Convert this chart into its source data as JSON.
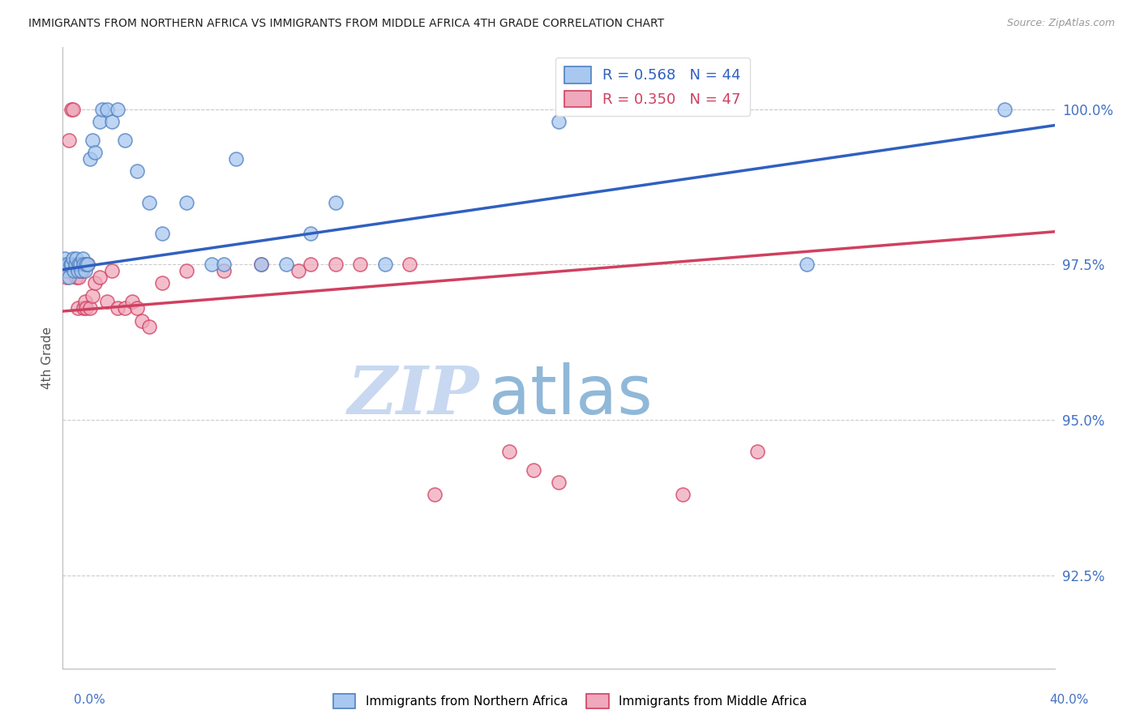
{
  "title": "IMMIGRANTS FROM NORTHERN AFRICA VS IMMIGRANTS FROM MIDDLE AFRICA 4TH GRADE CORRELATION CHART",
  "source": "Source: ZipAtlas.com",
  "ylabel": "4th Grade",
  "xmin": 0.0,
  "xmax": 40.0,
  "ymin": 91.0,
  "ymax": 101.0,
  "blue_R": 0.568,
  "blue_N": 44,
  "pink_R": 0.35,
  "pink_N": 47,
  "blue_label": "Immigrants from Northern Africa",
  "pink_label": "Immigrants from Middle Africa",
  "blue_color": "#A8C8F0",
  "pink_color": "#F0A8BC",
  "blue_edge_color": "#5080C0",
  "pink_edge_color": "#D04060",
  "blue_line_color": "#3060C0",
  "pink_line_color": "#D04060",
  "title_color": "#222222",
  "source_color": "#999999",
  "axis_label_color": "#4472C4",
  "watermark_zip_color": "#C8D8F0",
  "watermark_atlas_color": "#90B8D8",
  "background_color": "#FFFFFF",
  "ytick_vals": [
    92.5,
    95.0,
    97.5,
    100.0
  ],
  "blue_x": [
    0.05,
    0.1,
    0.15,
    0.2,
    0.25,
    0.3,
    0.35,
    0.4,
    0.45,
    0.5,
    0.55,
    0.6,
    0.65,
    0.7,
    0.75,
    0.8,
    0.85,
    0.9,
    0.95,
    1.0,
    1.1,
    1.2,
    1.3,
    1.5,
    1.6,
    1.8,
    2.0,
    2.2,
    2.5,
    3.0,
    3.5,
    4.0,
    5.0,
    6.0,
    6.5,
    7.0,
    8.0,
    9.0,
    10.0,
    11.0,
    13.0,
    20.0,
    30.0,
    38.0
  ],
  "blue_y": [
    97.5,
    97.6,
    97.4,
    97.5,
    97.3,
    97.5,
    97.5,
    97.6,
    97.4,
    97.5,
    97.6,
    97.4,
    97.5,
    97.5,
    97.4,
    97.6,
    97.5,
    97.4,
    97.5,
    97.5,
    99.2,
    99.5,
    99.3,
    99.8,
    100.0,
    100.0,
    99.8,
    100.0,
    99.5,
    99.0,
    98.5,
    98.0,
    98.5,
    97.5,
    97.5,
    99.2,
    97.5,
    97.5,
    98.0,
    98.5,
    97.5,
    99.8,
    97.5,
    100.0
  ],
  "pink_x": [
    0.05,
    0.1,
    0.15,
    0.2,
    0.25,
    0.3,
    0.35,
    0.4,
    0.45,
    0.5,
    0.55,
    0.6,
    0.65,
    0.7,
    0.75,
    0.8,
    0.85,
    0.9,
    0.95,
    1.0,
    1.1,
    1.2,
    1.3,
    1.5,
    1.8,
    2.0,
    2.2,
    2.5,
    2.8,
    3.0,
    3.2,
    3.5,
    4.0,
    5.0,
    6.5,
    8.0,
    9.5,
    10.0,
    11.0,
    12.0,
    14.0,
    15.0,
    18.0,
    19.0,
    20.0,
    25.0,
    28.0
  ],
  "pink_y": [
    97.5,
    97.4,
    97.3,
    97.5,
    99.5,
    97.5,
    100.0,
    100.0,
    97.4,
    97.5,
    97.3,
    96.8,
    97.3,
    97.4,
    97.5,
    97.4,
    96.8,
    96.9,
    96.8,
    97.5,
    96.8,
    97.0,
    97.2,
    97.3,
    96.9,
    97.4,
    96.8,
    96.8,
    96.9,
    96.8,
    96.6,
    96.5,
    97.2,
    97.4,
    97.4,
    97.5,
    97.4,
    97.5,
    97.5,
    97.5,
    97.5,
    93.8,
    94.5,
    94.2,
    94.0,
    93.8,
    94.5
  ],
  "blue_intercept": 97.42,
  "blue_slope": 0.058,
  "pink_intercept": 96.75,
  "pink_slope": 0.032
}
